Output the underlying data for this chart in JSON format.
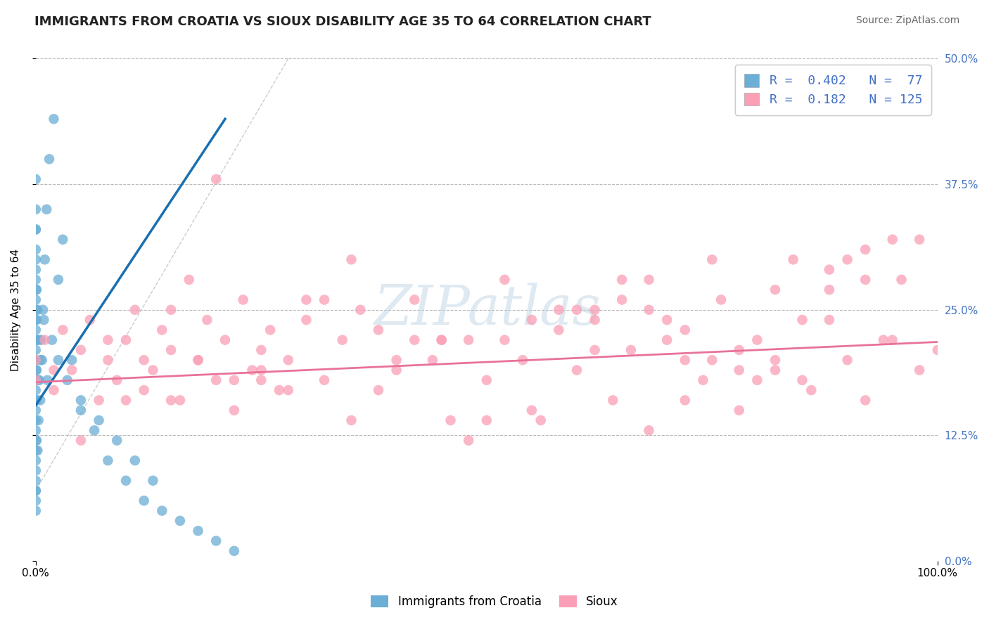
{
  "title": "IMMIGRANTS FROM CROATIA VS SIOUX DISABILITY AGE 35 TO 64 CORRELATION CHART",
  "source": "Source: ZipAtlas.com",
  "ylabel": "Disability Age 35 to 64",
  "legend_label1": "Immigrants from Croatia",
  "legend_label2": "Sioux",
  "R1": 0.402,
  "N1": 77,
  "R2": 0.182,
  "N2": 125,
  "color1": "#6baed6",
  "color2": "#fa9fb5",
  "trendline1_color": "#1a6faf",
  "trendline2_color": "#e8729a",
  "xmin": 0.0,
  "xmax": 1.0,
  "ymin": 0.0,
  "ymax": 0.5,
  "yticks": [
    0.0,
    0.125,
    0.25,
    0.375,
    0.5
  ],
  "ytick_labels": [
    "0.0%",
    "12.5%",
    "25.0%",
    "37.5%",
    "50.0%"
  ],
  "xtick_labels": [
    "0.0%",
    "100.0%"
  ],
  "scatter1_x": [
    0.0,
    0.0,
    0.0,
    0.0,
    0.0,
    0.0,
    0.0,
    0.0,
    0.0,
    0.0,
    0.0,
    0.0,
    0.0,
    0.0,
    0.0,
    0.0,
    0.0,
    0.0,
    0.0,
    0.0,
    0.0,
    0.0,
    0.0,
    0.0,
    0.0,
    0.0,
    0.0,
    0.0,
    0.0,
    0.0,
    0.001,
    0.001,
    0.001,
    0.001,
    0.002,
    0.002,
    0.003,
    0.004,
    0.005,
    0.006,
    0.008,
    0.01,
    0.012,
    0.015,
    0.02,
    0.025,
    0.03,
    0.04,
    0.05,
    0.065,
    0.08,
    0.1,
    0.12,
    0.14,
    0.16,
    0.18,
    0.2,
    0.22,
    0.0,
    0.0,
    0.001,
    0.001,
    0.002,
    0.003,
    0.005,
    0.007,
    0.009,
    0.013,
    0.018,
    0.025,
    0.035,
    0.05,
    0.07,
    0.09,
    0.11,
    0.13
  ],
  "scatter1_y": [
    0.05,
    0.07,
    0.09,
    0.11,
    0.13,
    0.15,
    0.17,
    0.19,
    0.21,
    0.23,
    0.25,
    0.27,
    0.29,
    0.31,
    0.33,
    0.35,
    0.16,
    0.18,
    0.2,
    0.22,
    0.24,
    0.26,
    0.28,
    0.3,
    0.12,
    0.14,
    0.38,
    0.08,
    0.1,
    0.06,
    0.16,
    0.19,
    0.22,
    0.27,
    0.11,
    0.25,
    0.14,
    0.18,
    0.2,
    0.22,
    0.25,
    0.3,
    0.35,
    0.4,
    0.44,
    0.28,
    0.32,
    0.2,
    0.15,
    0.13,
    0.1,
    0.08,
    0.06,
    0.05,
    0.04,
    0.03,
    0.02,
    0.01,
    0.33,
    0.07,
    0.12,
    0.24,
    0.18,
    0.22,
    0.16,
    0.2,
    0.24,
    0.18,
    0.22,
    0.2,
    0.18,
    0.16,
    0.14,
    0.12,
    0.1,
    0.08
  ],
  "scatter2_x": [
    0.0,
    0.0,
    0.01,
    0.02,
    0.03,
    0.04,
    0.05,
    0.06,
    0.07,
    0.08,
    0.09,
    0.1,
    0.11,
    0.12,
    0.13,
    0.14,
    0.15,
    0.16,
    0.17,
    0.18,
    0.19,
    0.2,
    0.21,
    0.22,
    0.23,
    0.24,
    0.25,
    0.26,
    0.27,
    0.28,
    0.3,
    0.32,
    0.34,
    0.36,
    0.38,
    0.4,
    0.42,
    0.44,
    0.46,
    0.48,
    0.5,
    0.52,
    0.54,
    0.56,
    0.58,
    0.6,
    0.62,
    0.64,
    0.66,
    0.68,
    0.7,
    0.72,
    0.74,
    0.76,
    0.78,
    0.8,
    0.82,
    0.84,
    0.86,
    0.88,
    0.9,
    0.92,
    0.94,
    0.96,
    0.98,
    1.0,
    0.05,
    0.15,
    0.25,
    0.35,
    0.45,
    0.55,
    0.65,
    0.75,
    0.85,
    0.95,
    0.1,
    0.3,
    0.5,
    0.7,
    0.9,
    0.2,
    0.4,
    0.6,
    0.8,
    0.08,
    0.48,
    0.88,
    0.15,
    0.55,
    0.95,
    0.25,
    0.65,
    0.35,
    0.75,
    0.45,
    0.85,
    0.18,
    0.58,
    0.98,
    0.28,
    0.68,
    0.38,
    0.78,
    0.12,
    0.52,
    0.92,
    0.22,
    0.62,
    0.32,
    0.72,
    0.42,
    0.82,
    0.02,
    0.62,
    0.68,
    0.72,
    0.78,
    0.82,
    0.88,
    0.92
  ],
  "scatter2_y": [
    0.18,
    0.2,
    0.22,
    0.17,
    0.23,
    0.19,
    0.21,
    0.24,
    0.16,
    0.2,
    0.18,
    0.22,
    0.25,
    0.17,
    0.19,
    0.23,
    0.21,
    0.16,
    0.28,
    0.2,
    0.24,
    0.18,
    0.22,
    0.15,
    0.26,
    0.19,
    0.21,
    0.23,
    0.17,
    0.2,
    0.24,
    0.18,
    0.22,
    0.25,
    0.17,
    0.19,
    0.26,
    0.2,
    0.14,
    0.22,
    0.18,
    0.28,
    0.2,
    0.14,
    0.23,
    0.19,
    0.25,
    0.16,
    0.21,
    0.13,
    0.24,
    0.2,
    0.18,
    0.26,
    0.15,
    0.22,
    0.19,
    0.3,
    0.17,
    0.24,
    0.2,
    0.16,
    0.22,
    0.28,
    0.19,
    0.21,
    0.12,
    0.25,
    0.18,
    0.3,
    0.22,
    0.15,
    0.28,
    0.2,
    0.24,
    0.32,
    0.16,
    0.26,
    0.14,
    0.22,
    0.3,
    0.38,
    0.2,
    0.25,
    0.18,
    0.22,
    0.12,
    0.27,
    0.16,
    0.24,
    0.22,
    0.19,
    0.26,
    0.14,
    0.3,
    0.22,
    0.18,
    0.2,
    0.25,
    0.32,
    0.17,
    0.28,
    0.23,
    0.19,
    0.2,
    0.22,
    0.28,
    0.18,
    0.24,
    0.26,
    0.16,
    0.22,
    0.2,
    0.19,
    0.21,
    0.25,
    0.23,
    0.21,
    0.27,
    0.29,
    0.31
  ],
  "trendline1_x": [
    0.0,
    0.21
  ],
  "trendline1_y": [
    0.155,
    0.44
  ],
  "trendline2_x": [
    0.0,
    1.0
  ],
  "trendline2_y": [
    0.178,
    0.218
  ],
  "refline_x": [
    0.0,
    0.28
  ],
  "refline_y": [
    0.07,
    0.5
  ],
  "dashed_line_color": "#bbbbbb",
  "background_color": "#ffffff",
  "title_fontsize": 13,
  "axis_fontsize": 11,
  "legend_fontsize": 13,
  "source_fontsize": 10
}
